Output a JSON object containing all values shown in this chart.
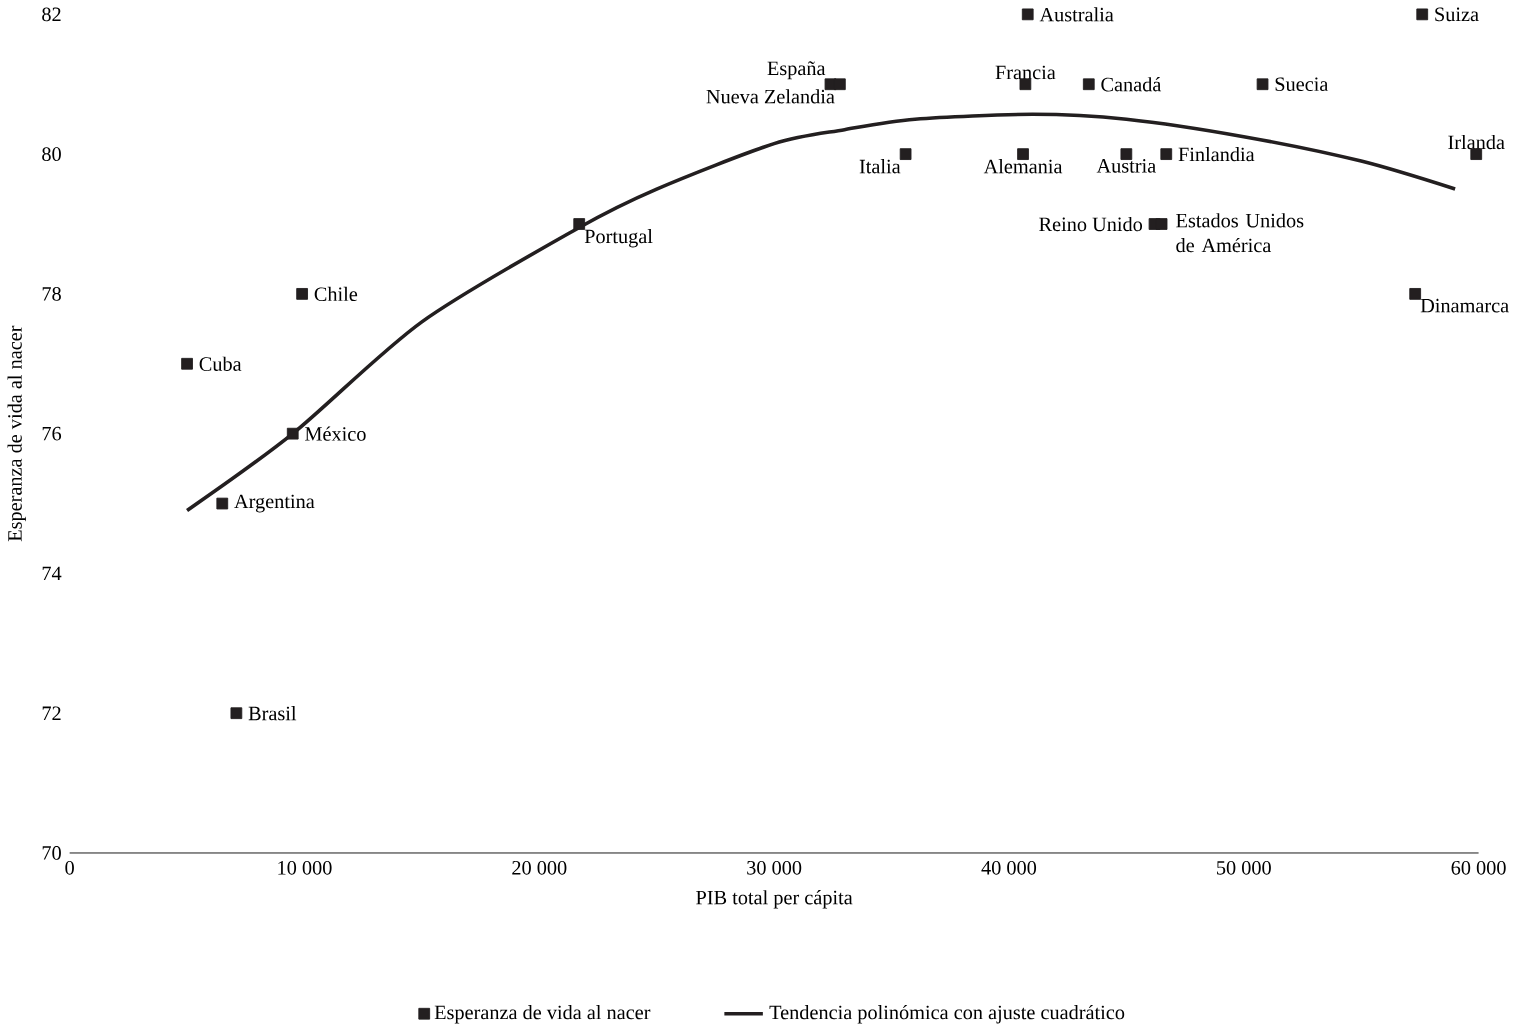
{
  "chart_data": {
    "type": "scatter",
    "xlabel": "PIB total per cápita",
    "ylabel": "Esperanza de vida al nacer",
    "xlim": [
      0,
      60000
    ],
    "ylim": [
      70,
      82
    ],
    "xticks": [
      {
        "value": 0,
        "label": "0"
      },
      {
        "value": 10000,
        "label": "10 000"
      },
      {
        "value": 20000,
        "label": "20 000"
      },
      {
        "value": 30000,
        "label": "30 000"
      },
      {
        "value": 40000,
        "label": "40 000"
      },
      {
        "value": 50000,
        "label": "50 000"
      },
      {
        "value": 60000,
        "label": "60 000"
      }
    ],
    "yticks": [
      70,
      72,
      74,
      76,
      78,
      80,
      82
    ],
    "legend": "bottom",
    "marker": "square",
    "grid": false,
    "series": [
      {
        "name": "Esperanza de vida al nacer",
        "color": "#231f20",
        "x": [
          5000,
          6500,
          9900,
          9500,
          7100,
          21700,
          32400,
          32800,
          35600,
          40800,
          40700,
          43400,
          40600,
          45000,
          46700,
          46200,
          46500,
          50800,
          57600,
          59900,
          57300
        ],
        "values": [
          77,
          75,
          78,
          76,
          72,
          79,
          81,
          81,
          80,
          82,
          81,
          81,
          80,
          80,
          80,
          79,
          79,
          81,
          82,
          80,
          78
        ]
      },
      {
        "name": "Tendencia polinómica con ajuste cuadrático",
        "type": "line",
        "color": "#231f20",
        "line_style": "solid",
        "marker": "none",
        "x": [
          5000,
          9500,
          15000,
          21700,
          25000,
          30000,
          33000,
          36000,
          41000,
          45000,
          50000,
          55000,
          59000
        ],
        "values": [
          74.9,
          76.0,
          77.6,
          78.95,
          79.5,
          80.15,
          80.35,
          80.5,
          80.57,
          80.5,
          80.25,
          79.9,
          79.5
        ]
      }
    ],
    "annotations": [
      {
        "text": "Cuba",
        "x": 5000,
        "y": 77
      },
      {
        "text": "Argentina",
        "x": 6500,
        "y": 75
      },
      {
        "text": "Chile",
        "x": 9900,
        "y": 78
      },
      {
        "text": "México",
        "x": 9500,
        "y": 76
      },
      {
        "text": "Brasil",
        "x": 7100,
        "y": 72
      },
      {
        "text": "Portugal",
        "x": 21700,
        "y": 79
      },
      {
        "text": "España",
        "x": 32400,
        "y": 81
      },
      {
        "text": "Nueva Zelandia",
        "x": 32800,
        "y": 81
      },
      {
        "text": "Italia",
        "x": 35600,
        "y": 80
      },
      {
        "text": "Australia",
        "x": 40800,
        "y": 82
      },
      {
        "text": "Francia",
        "x": 40700,
        "y": 81
      },
      {
        "text": "Canadá",
        "x": 43400,
        "y": 81
      },
      {
        "text": "Alemania",
        "x": 40600,
        "y": 80
      },
      {
        "text": "Austria",
        "x": 45000,
        "y": 80
      },
      {
        "text": "Finlandia",
        "x": 46700,
        "y": 80
      },
      {
        "text": "Reino Unido",
        "x": 46200,
        "y": 79
      },
      {
        "text": "Estados Unidos\nde América",
        "x": 46500,
        "y": 79
      },
      {
        "text": "Suecia",
        "x": 50800,
        "y": 81
      },
      {
        "text": "Suiza",
        "x": 57600,
        "y": 82
      },
      {
        "text": "Irlanda",
        "x": 59900,
        "y": 80
      },
      {
        "text": "Dinamarca",
        "x": 57300,
        "y": 78
      }
    ]
  }
}
